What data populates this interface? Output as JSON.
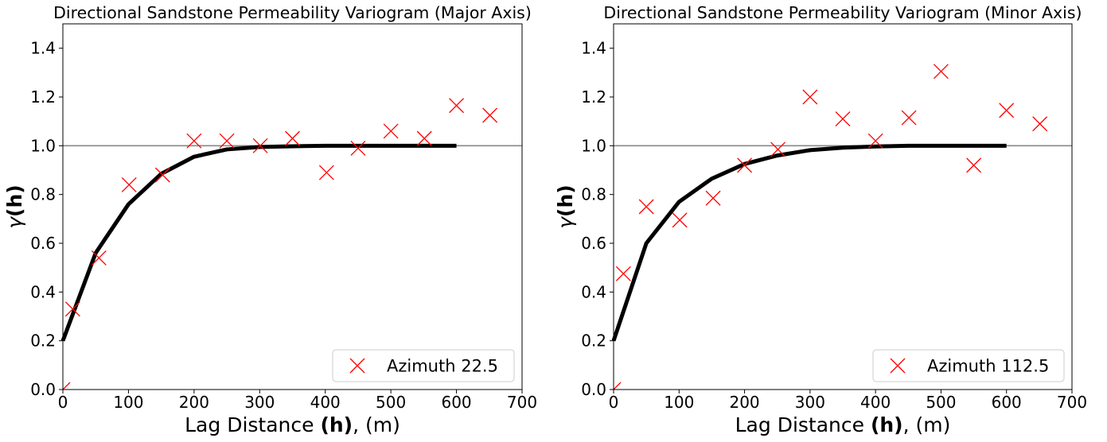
{
  "chart_data": [
    {
      "type": "scatter",
      "title": "Directional Sandstone Permeability Variogram (Major Axis)",
      "xlabel_prefix": "Lag Distance ",
      "xlabel_bold": "(h)",
      "xlabel_suffix": ", (m)",
      "ylabel_prefix": "γ",
      "ylabel_bold": "(h)",
      "xlim": [
        0,
        700
      ],
      "ylim": [
        0,
        1.5
      ],
      "xticks": [
        "0",
        "100",
        "200",
        "300",
        "400",
        "500",
        "600",
        "700"
      ],
      "yticks": [
        "0.0",
        "0.2",
        "0.4",
        "0.6",
        "0.8",
        "1.0",
        "1.2",
        "1.4"
      ],
      "sill": 1.0,
      "legend": "top-right",
      "series": [
        {
          "name": "Azimuth 22.5",
          "marker": "x",
          "color": "#ff0000",
          "x": [
            0,
            15,
            55,
            101,
            152,
            200,
            250,
            301,
            350,
            402,
            450,
            500,
            551,
            600,
            651
          ],
          "y": [
            0.0,
            0.33,
            0.54,
            0.84,
            0.88,
            1.02,
            1.02,
            1.0,
            1.03,
            0.89,
            0.99,
            1.06,
            1.03,
            1.165,
            1.125
          ]
        }
      ],
      "model": {
        "color": "#000000",
        "x": [
          0,
          50,
          100,
          150,
          200,
          250,
          300,
          350,
          400,
          450,
          500,
          550,
          600
        ],
        "y": [
          0.2,
          0.56,
          0.76,
          0.885,
          0.955,
          0.985,
          0.995,
          0.998,
          1.0,
          1.0,
          1.0,
          1.0,
          1.0
        ]
      }
    },
    {
      "type": "scatter",
      "title": "Directional Sandstone Permeability Variogram (Minor Axis)",
      "xlabel_prefix": "Lag Distance ",
      "xlabel_bold": "(h)",
      "xlabel_suffix": ", (m)",
      "ylabel_prefix": "γ",
      "ylabel_bold": "(h)",
      "xlim": [
        0,
        700
      ],
      "ylim": [
        0,
        1.5
      ],
      "xticks": [
        "0",
        "100",
        "200",
        "300",
        "400",
        "500",
        "600",
        "700"
      ],
      "yticks": [
        "0.0",
        "0.2",
        "0.4",
        "0.6",
        "0.8",
        "1.0",
        "1.2",
        "1.4"
      ],
      "sill": 1.0,
      "legend": "bottom-right",
      "series": [
        {
          "name": "Azimuth 112.5",
          "marker": "x",
          "color": "#ff0000",
          "x": [
            0,
            15,
            50,
            101,
            152,
            200,
            251,
            300,
            350,
            400,
            451,
            500,
            550,
            600,
            651
          ],
          "y": [
            0.0,
            0.475,
            0.75,
            0.695,
            0.785,
            0.92,
            0.985,
            1.2,
            1.11,
            1.02,
            1.115,
            1.305,
            0.92,
            1.145,
            1.09
          ]
        }
      ],
      "model": {
        "color": "#000000",
        "x": [
          0,
          50,
          100,
          150,
          200,
          250,
          300,
          350,
          400,
          450,
          500,
          550,
          600
        ],
        "y": [
          0.2,
          0.6,
          0.77,
          0.865,
          0.925,
          0.96,
          0.982,
          0.992,
          0.997,
          1.0,
          1.0,
          1.0,
          1.0
        ]
      }
    }
  ]
}
